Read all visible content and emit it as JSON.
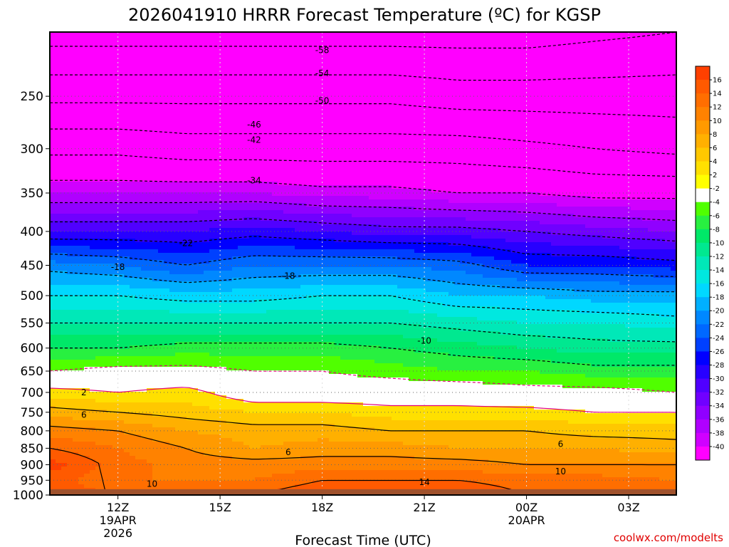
{
  "chart_data": {
    "type": "heatmap",
    "title": "2026041910 HRRR Forecast Temperature (ºC) for KGSP",
    "xlabel": "Forecast Time (UTC)",
    "credit": "coolwx.com/modelts",
    "y_axis": {
      "direction": "pressure-decreasing-up",
      "ylim": [
        1000,
        200
      ],
      "tick_values": [
        250,
        300,
        350,
        400,
        450,
        500,
        550,
        600,
        650,
        700,
        750,
        800,
        850,
        900,
        950,
        1000
      ],
      "tick_labels": [
        "250",
        "300",
        "350",
        "400",
        "450",
        "500",
        "550",
        "600",
        "650",
        "700",
        "750",
        "800",
        "850",
        "900",
        "950",
        "1000"
      ]
    },
    "x_axis": {
      "xlim": [
        10,
        28.4
      ],
      "ticks": [
        {
          "hour": 12,
          "lines": [
            "12Z",
            "19APR",
            "2026"
          ]
        },
        {
          "hour": 15,
          "lines": [
            "15Z"
          ]
        },
        {
          "hour": 18,
          "lines": [
            "18Z"
          ]
        },
        {
          "hour": 21,
          "lines": [
            "21Z"
          ]
        },
        {
          "hour": 24,
          "lines": [
            "00Z",
            "20APR"
          ]
        },
        {
          "hour": 27,
          "lines": [
            "03Z"
          ]
        }
      ]
    },
    "grid": true,
    "colorbar": {
      "placement": "right",
      "labels": [
        "16",
        "14",
        "12",
        "10",
        "8",
        "6",
        "4",
        "2",
        "-2",
        "-4",
        "-6",
        "-8",
        "-10",
        "-12",
        "-14",
        "-16",
        "-18",
        "-20",
        "-22",
        "-24",
        "-26",
        "-28",
        "-30",
        "-32",
        "-34",
        "-36",
        "-38",
        "-40"
      ],
      "colors": [
        "#ff4000",
        "#ff5a00",
        "#ff6e00",
        "#ff8200",
        "#ff9a00",
        "#ffb000",
        "#ffc800",
        "#ffe000",
        "#ffff00",
        "#ffffff",
        "#50ff00",
        "#28f040",
        "#00e868",
        "#00e890",
        "#00e8b8",
        "#00e8e0",
        "#00d8ff",
        "#00b0ff",
        "#0088ff",
        "#0068ff",
        "#0040ff",
        "#0000ff",
        "#2800ff",
        "#5000ff",
        "#7000ff",
        "#9000ff",
        "#b000ff",
        "#d000ff",
        "#ff00ff"
      ]
    },
    "ground_color": "#a0522d",
    "contour_values": [
      -58,
      -54,
      -50,
      -46,
      -42,
      -38,
      -34,
      -30,
      -26,
      -22,
      -18,
      -14,
      -10,
      -6,
      -2,
      2,
      6,
      10,
      14
    ],
    "contour_labels": [
      {
        "text": "-58",
        "hour": 18,
        "p": 213
      },
      {
        "text": "-54",
        "hour": 18,
        "p": 231
      },
      {
        "text": "-50",
        "hour": 18,
        "p": 254
      },
      {
        "text": "-46",
        "hour": 16,
        "p": 276
      },
      {
        "text": "-42",
        "hour": 16,
        "p": 291
      },
      {
        "text": "-34",
        "hour": 16,
        "p": 335
      },
      {
        "text": "-22",
        "hour": 14,
        "p": 417
      },
      {
        "text": "-18",
        "hour": 12,
        "p": 453
      },
      {
        "text": "-18",
        "hour": 17,
        "p": 467
      },
      {
        "text": "-10",
        "hour": 21,
        "p": 585
      },
      {
        "text": "2",
        "hour": 11,
        "p": 700
      },
      {
        "text": "6",
        "hour": 11,
        "p": 757
      },
      {
        "text": "6",
        "hour": 17,
        "p": 862
      },
      {
        "text": "6",
        "hour": 25,
        "p": 838
      },
      {
        "text": "10",
        "hour": 13,
        "p": 962
      },
      {
        "text": "10",
        "hour": 25,
        "p": 922
      },
      {
        "text": "14",
        "hour": 21,
        "p": 957
      }
    ],
    "temperature_profiles": {
      "pressure_levels": [
        200,
        250,
        300,
        350,
        400,
        450,
        500,
        550,
        600,
        650,
        700,
        750,
        800,
        850,
        900,
        950,
        1000
      ],
      "series": [
        {
          "hour": 10,
          "values": [
            -60,
            -51,
            -43,
            -36,
            -28,
            -19,
            -14,
            -10,
            -6,
            -2,
            3,
            7,
            11,
            14,
            17,
            15,
            16
          ]
        },
        {
          "hour": 12,
          "values": [
            -60,
            -51,
            -43,
            -36,
            -28,
            -20,
            -14,
            -10,
            -6,
            -1,
            2,
            6,
            10,
            12,
            13,
            12,
            14
          ]
        },
        {
          "hour": 14,
          "values": [
            -60,
            -51,
            -44,
            -36,
            -28,
            -22,
            -15,
            -10,
            -5,
            -1,
            3,
            5,
            8,
            10,
            11,
            12,
            14
          ]
        },
        {
          "hour": 16,
          "values": [
            -60,
            -51,
            -44,
            -36,
            -27,
            -20,
            -15,
            -10,
            -5,
            -2,
            0,
            4,
            7,
            8,
            11,
            12,
            14
          ]
        },
        {
          "hour": 18,
          "values": [
            -60,
            -51,
            -44,
            -37,
            -28,
            -20,
            -14,
            -10,
            -5,
            -2,
            0,
            4,
            7,
            9,
            11,
            14,
            16
          ]
        },
        {
          "hour": 20,
          "values": [
            -60,
            -51,
            -44,
            -37,
            -29,
            -20,
            -14,
            -10,
            -6,
            -3,
            0,
            3,
            6,
            9,
            11,
            14,
            16
          ]
        },
        {
          "hour": 22,
          "values": [
            -60,
            -52,
            -44,
            -38,
            -29,
            -21,
            -16,
            -11,
            -7,
            -4,
            0,
            3,
            6,
            8,
            11,
            14,
            16
          ]
        },
        {
          "hour": 24,
          "values": [
            -60,
            -52,
            -45,
            -38,
            -30,
            -24,
            -16,
            -12,
            -8,
            -4,
            -1,
            3,
            6,
            8,
            10,
            13,
            14
          ]
        },
        {
          "hour": 26,
          "values": [
            -59,
            -52,
            -46,
            -39,
            -31,
            -24,
            -17,
            -12,
            -9,
            -5,
            -1,
            2,
            5,
            8,
            10,
            13,
            13
          ]
        },
        {
          "hour": 28.4,
          "values": [
            -58,
            -52,
            -47,
            -39,
            -32,
            -25,
            -17,
            -13,
            -9,
            -5,
            -2,
            2,
            5,
            7,
            10,
            12,
            12
          ]
        }
      ]
    }
  }
}
